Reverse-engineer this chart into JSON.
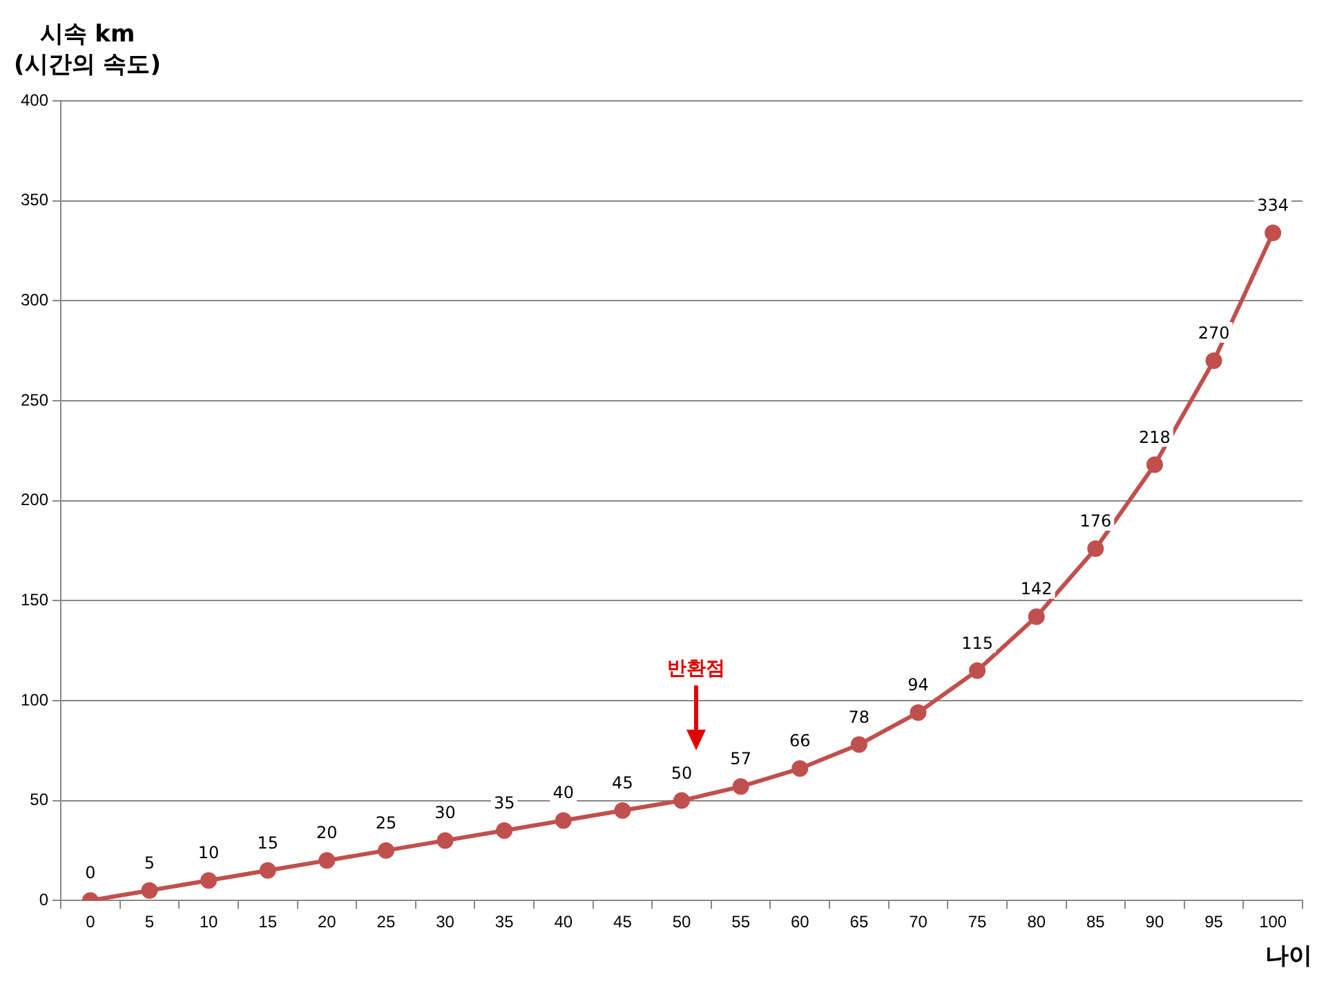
{
  "chart_data": {
    "type": "line",
    "ylabel": "시속 km\n(시간의 속도)",
    "xlabel": "나이",
    "categories": [
      "0",
      "5",
      "10",
      "15",
      "20",
      "25",
      "30",
      "35",
      "40",
      "45",
      "50",
      "55",
      "60",
      "65",
      "70",
      "75",
      "80",
      "85",
      "90",
      "95",
      "100"
    ],
    "series": [
      {
        "color": "#c0504d",
        "values": [
          0,
          5,
          10,
          15,
          20,
          25,
          30,
          35,
          40,
          45,
          50,
          57,
          66,
          78,
          94,
          115,
          142,
          176,
          218,
          270,
          334
        ]
      }
    ],
    "ylim": [
      0,
      400
    ],
    "yticks": [
      0,
      50,
      100,
      150,
      200,
      250,
      300,
      350,
      400
    ],
    "grid": "y",
    "legend": false,
    "marker": "circle",
    "line_style": "solid",
    "data_labels": true,
    "annotations": [
      "반환점"
    ]
  }
}
